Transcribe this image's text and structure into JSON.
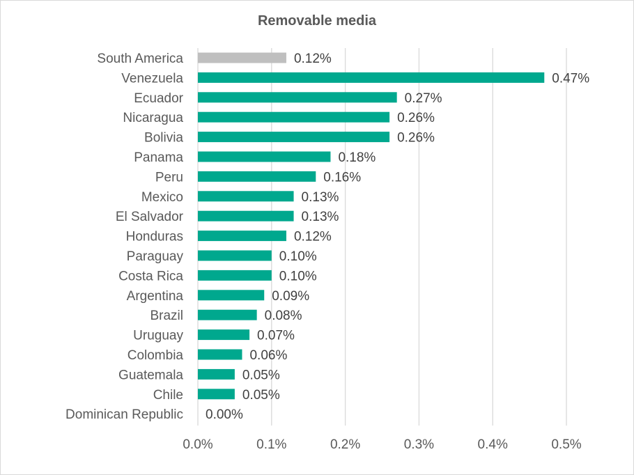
{
  "chart_data": {
    "type": "bar",
    "orientation": "horizontal",
    "title": "Removable media",
    "xlabel": "",
    "ylabel": "",
    "xlim": [
      0,
      0.5
    ],
    "x_ticks": [
      "0.0%",
      "0.1%",
      "0.2%",
      "0.3%",
      "0.4%",
      "0.5%"
    ],
    "grid": "vertical",
    "legend": "none",
    "categories": [
      "South America",
      "Venezuela",
      "Ecuador",
      "Nicaragua",
      "Bolivia",
      "Panama",
      "Peru",
      "Mexico",
      "El Salvador",
      "Honduras",
      "Paraguay",
      "Costa Rica",
      "Argentina",
      "Brazil",
      "Uruguay",
      "Colombia",
      "Guatemala",
      "Chile",
      "Dominican Republic"
    ],
    "values": [
      0.12,
      0.47,
      0.27,
      0.26,
      0.26,
      0.18,
      0.16,
      0.13,
      0.13,
      0.12,
      0.1,
      0.1,
      0.09,
      0.08,
      0.07,
      0.06,
      0.05,
      0.05,
      0.0
    ],
    "value_labels": [
      "0.12%",
      "0.47%",
      "0.27%",
      "0.26%",
      "0.26%",
      "0.18%",
      "0.16%",
      "0.13%",
      "0.13%",
      "0.12%",
      "0.10%",
      "0.10%",
      "0.09%",
      "0.08%",
      "0.07%",
      "0.06%",
      "0.05%",
      "0.05%",
      "0.00%"
    ],
    "colors": {
      "highlight": "#bfbfbf",
      "bar": "#00a88e",
      "grid": "#d9d9d9"
    },
    "highlight_category": "South America"
  }
}
